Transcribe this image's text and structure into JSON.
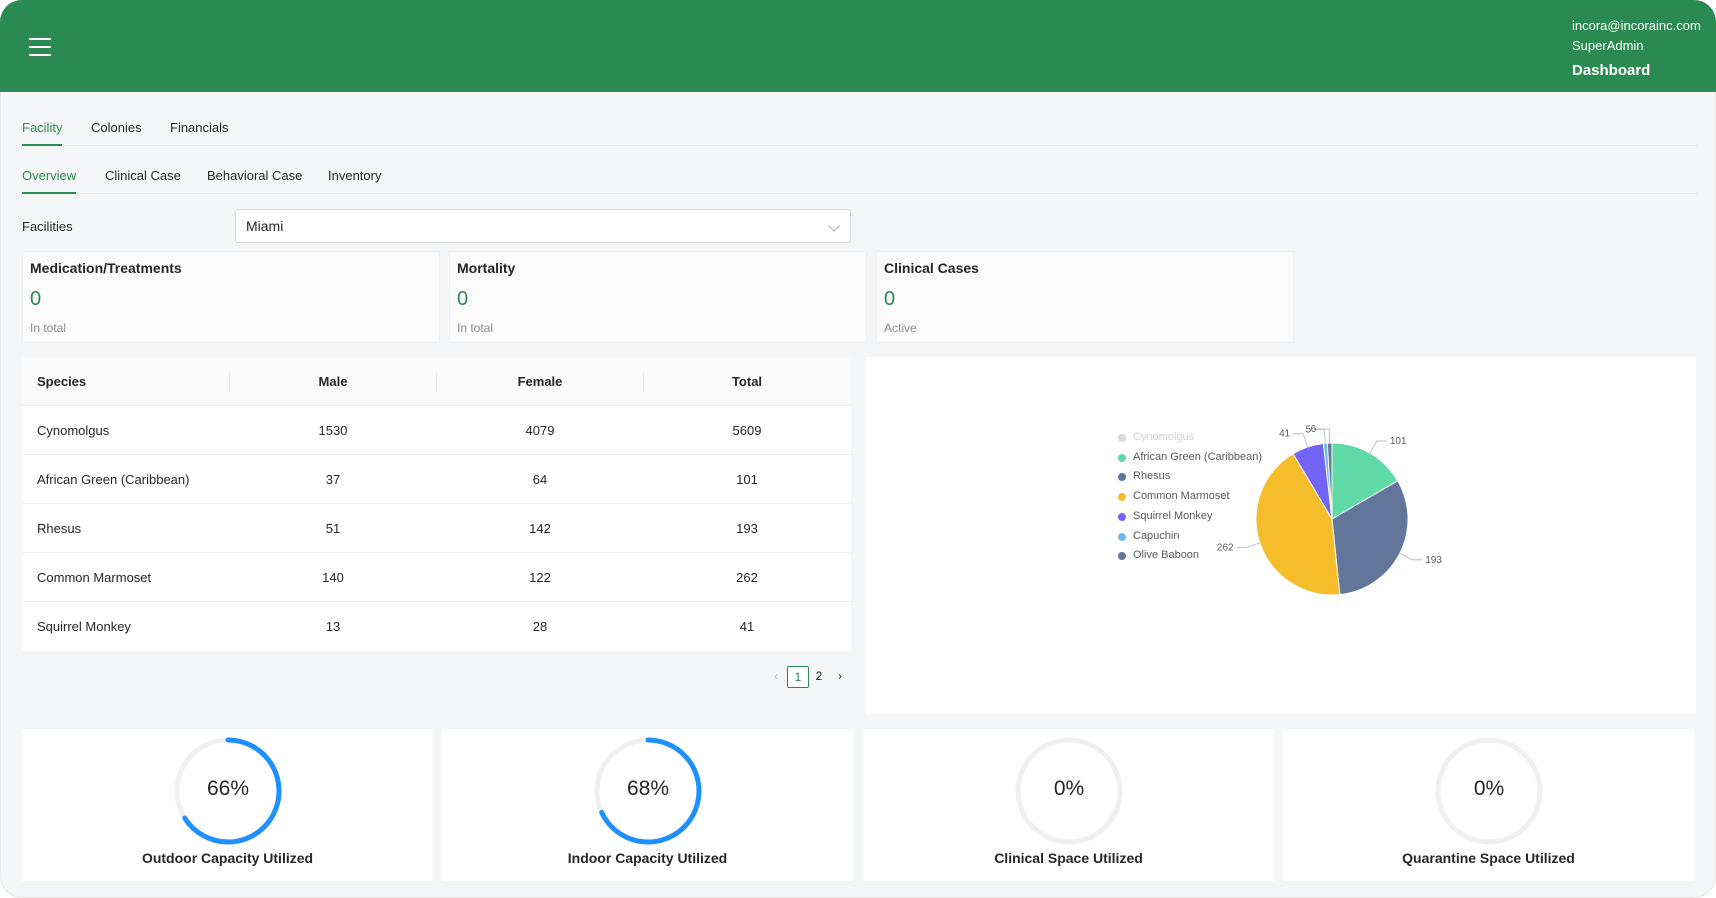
{
  "header": {
    "email": "incora@incorainc.com",
    "role": "SuperAdmin",
    "dashboard_label": "Dashboard",
    "background": "#2b8a52"
  },
  "tabs_primary": [
    {
      "label": "Facility",
      "active": true
    },
    {
      "label": "Colonies",
      "active": false
    },
    {
      "label": "Financials",
      "active": false
    }
  ],
  "tabs_secondary": [
    {
      "label": "Overview",
      "active": true
    },
    {
      "label": "Clinical Case",
      "active": false
    },
    {
      "label": "Behavioral Case",
      "active": false
    },
    {
      "label": "Inventory",
      "active": false
    }
  ],
  "facilities": {
    "label": "Facilities",
    "selected": "Miami"
  },
  "stats": [
    {
      "title": "Medication/Treatments",
      "value": "0",
      "sub": "In total"
    },
    {
      "title": "Mortality",
      "value": "0",
      "sub": "In total"
    },
    {
      "title": "Clinical Cases",
      "value": "0",
      "sub": "Active"
    }
  ],
  "table": {
    "columns": [
      "Species",
      "Male",
      "Female",
      "Total"
    ],
    "rows": [
      [
        "Cynomolgus",
        "1530",
        "4079",
        "5609"
      ],
      [
        "African Green (Caribbean)",
        "37",
        "64",
        "101"
      ],
      [
        "Rhesus",
        "51",
        "142",
        "193"
      ],
      [
        "Common Marmoset",
        "140",
        "122",
        "262"
      ],
      [
        "Squirrel Monkey",
        "13",
        "28",
        "41"
      ]
    ]
  },
  "pagination": {
    "pages": [
      "1",
      "2"
    ],
    "current": "1",
    "prev": "‹",
    "next": "›"
  },
  "chart_data": {
    "type": "pie",
    "legend_position": "left",
    "series": [
      {
        "name": "Cynomolgus",
        "value": 5609,
        "color": "#d9d9d9",
        "hidden": true
      },
      {
        "name": "African Green (Caribbean)",
        "value": 101,
        "color": "#5fd9a5"
      },
      {
        "name": "Rhesus",
        "value": 193,
        "color": "#62759a"
      },
      {
        "name": "Common Marmoset",
        "value": 262,
        "color": "#f6bd2b"
      },
      {
        "name": "Squirrel Monkey",
        "value": 41,
        "color": "#7264f7"
      },
      {
        "name": "Capuchin",
        "value": 5,
        "color": "#6db9f2"
      },
      {
        "name": "Olive Baboon",
        "value": 6,
        "color": "#667796"
      }
    ],
    "data_labels": [
      "101",
      "193",
      "262",
      "41",
      "5",
      "6"
    ]
  },
  "capacity": [
    {
      "label": "Outdoor Capacity Utilized",
      "percent": 66,
      "text": "66%"
    },
    {
      "label": "Indoor Capacity Utilized",
      "percent": 68,
      "text": "68%"
    },
    {
      "label": "Clinical Space Utilized",
      "percent": 0,
      "text": "0%"
    },
    {
      "label": "Quarantine Space Utilized",
      "percent": 0,
      "text": "0%"
    }
  ],
  "colors": {
    "accent": "#2b8a52",
    "progress": "#1e90ff",
    "track": "#f0f0f0"
  }
}
